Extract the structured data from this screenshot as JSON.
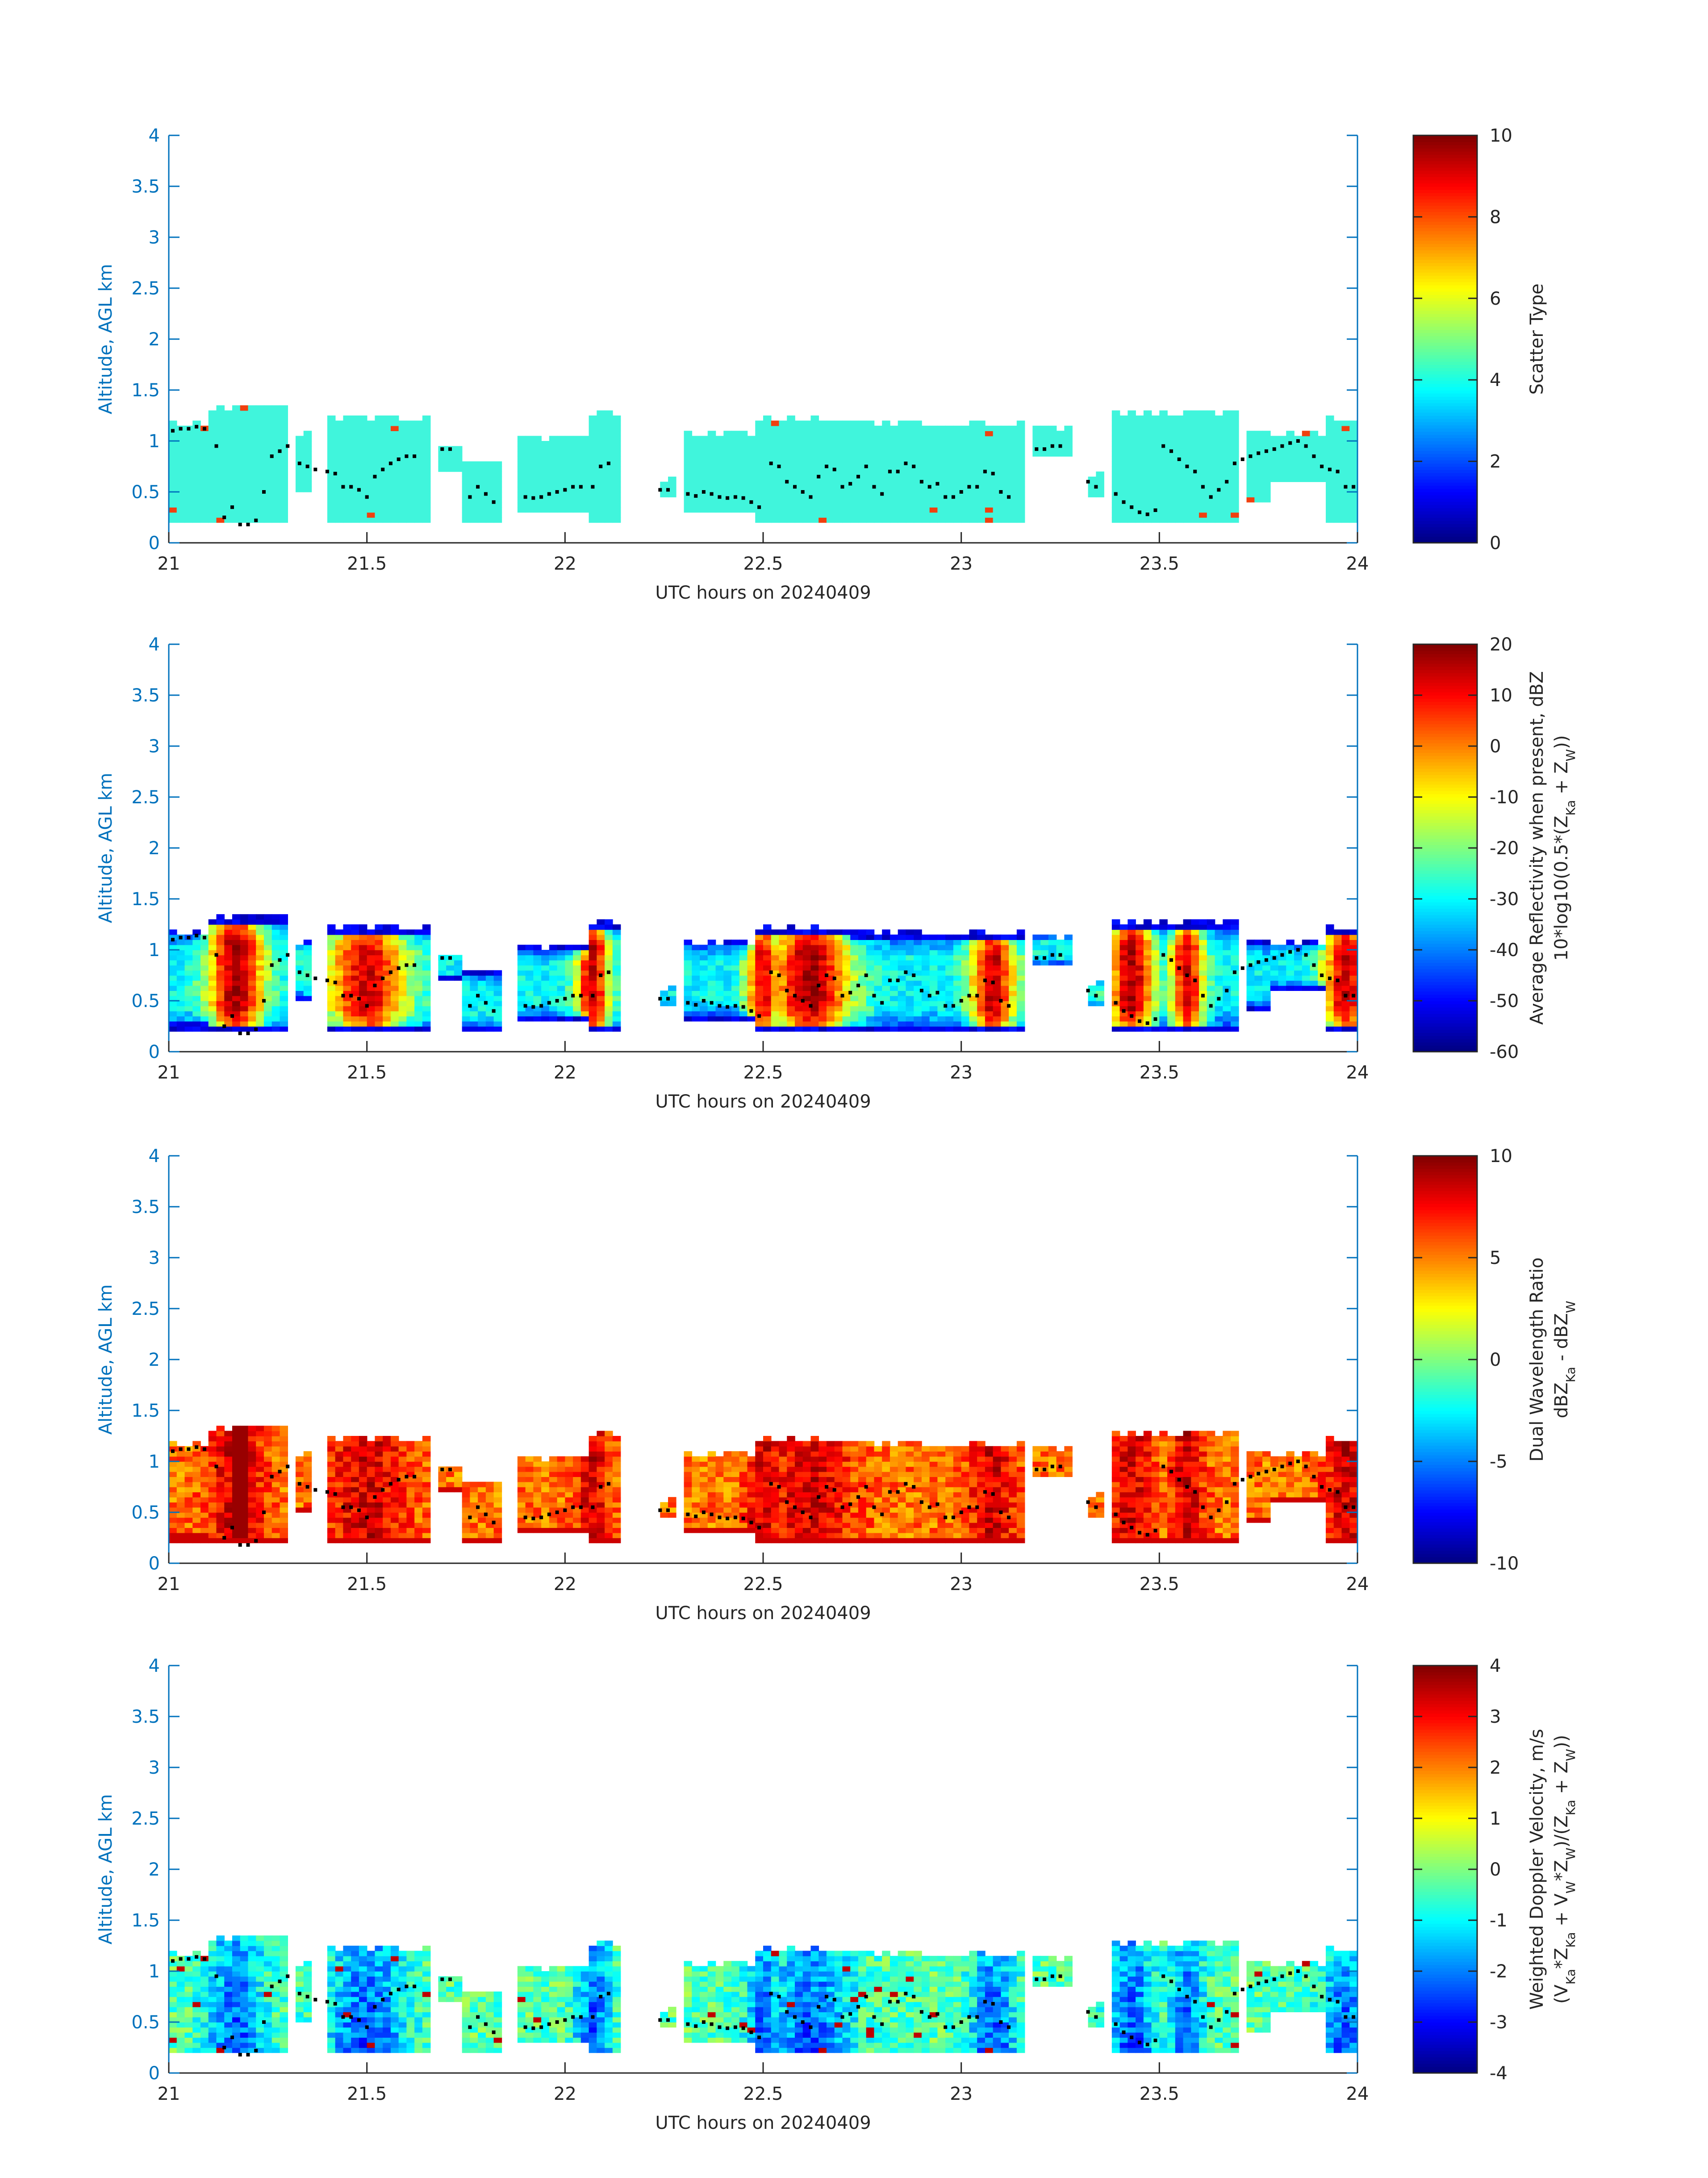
{
  "figure": {
    "colors": {
      "axis_blue": "#0072bd",
      "text_dark": "#262626",
      "scatter_cyan": "#40f5dc",
      "scatter_red": "#f0400f",
      "point_black": "#000000"
    },
    "colormap": "jet"
  },
  "chart_data": [
    {
      "type": "heatmap",
      "title": "",
      "xlabel": "UTC hours on 20240409",
      "ylabel": "Altitude, AGL km",
      "xlim": [
        21,
        24
      ],
      "ylim": [
        0,
        4
      ],
      "x_ticks": [
        "21",
        "21.5",
        "22",
        "22.5",
        "23",
        "23.5",
        "24"
      ],
      "y_ticks": [
        "0",
        "0.5",
        "1",
        "1.5",
        "2",
        "2.5",
        "3",
        "3.5",
        "4"
      ],
      "colorbar": {
        "label_lines": [
          "Scatter Type"
        ],
        "limits": [
          0,
          10
        ],
        "ticks": [
          "0",
          "2",
          "4",
          "6",
          "8",
          "10"
        ]
      },
      "field": "scatter"
    },
    {
      "type": "heatmap",
      "title": "",
      "xlabel": "UTC hours on 20240409",
      "ylabel": "Altitude, AGL km",
      "xlim": [
        21,
        24
      ],
      "ylim": [
        0,
        4
      ],
      "x_ticks": [
        "21",
        "21.5",
        "22",
        "22.5",
        "23",
        "23.5",
        "24"
      ],
      "y_ticks": [
        "0",
        "0.5",
        "1",
        "1.5",
        "2",
        "2.5",
        "3",
        "3.5",
        "4"
      ],
      "colorbar": {
        "label_lines": [
          "Average Reflectivity when present, dBZ",
          "10*log10(0.5*(Z_Ka + Z_W))"
        ],
        "limits": [
          -60,
          20
        ],
        "ticks": [
          "-60",
          "-50",
          "-40",
          "-30",
          "-20",
          "-10",
          "0",
          "10",
          "20"
        ]
      },
      "field": "reflectivity"
    },
    {
      "type": "heatmap",
      "title": "",
      "xlabel": "UTC hours on 20240409",
      "ylabel": "Altitude, AGL km",
      "xlim": [
        21,
        24
      ],
      "ylim": [
        0,
        4
      ],
      "x_ticks": [
        "21",
        "21.5",
        "22",
        "22.5",
        "23",
        "23.5",
        "24"
      ],
      "y_ticks": [
        "0",
        "0.5",
        "1",
        "1.5",
        "2",
        "2.5",
        "3",
        "3.5",
        "4"
      ],
      "colorbar": {
        "label_lines": [
          "Dual Wavelength Ratio",
          "dBZ_Ka - dBZ_W"
        ],
        "limits": [
          -10,
          10
        ],
        "ticks": [
          "-10",
          "-5",
          "0",
          "5",
          "10"
        ]
      },
      "field": "dwr"
    },
    {
      "type": "heatmap",
      "title": "",
      "xlabel": "UTC hours on 20240409",
      "ylabel": "Altitude, AGL km",
      "xlim": [
        21,
        24
      ],
      "ylim": [
        0,
        4
      ],
      "x_ticks": [
        "21",
        "21.5",
        "22",
        "22.5",
        "23",
        "23.5",
        "24"
      ],
      "y_ticks": [
        "0",
        "0.5",
        "1",
        "1.5",
        "2",
        "2.5",
        "3",
        "3.5",
        "4"
      ],
      "colorbar": {
        "label_lines": [
          "Weighted Doppler Velocity, m/s",
          "(V_Ka*Z_Ka + V_W*Z_W)/(Z_Ka + Z_W))"
        ],
        "limits": [
          -4,
          4
        ],
        "ticks": [
          "-4",
          "-3",
          "-2",
          "-1",
          "0",
          "1",
          "2",
          "3",
          "4"
        ]
      },
      "field": "velocity"
    }
  ],
  "cloud_segments": [
    {
      "t0": 21.0,
      "t1": 21.1,
      "base": 0.2,
      "top": 1.22
    },
    {
      "t0": 21.1,
      "t1": 21.3,
      "base": 0.18,
      "top": 1.35
    },
    {
      "t0": 21.31,
      "t1": 21.36,
      "base": 0.5,
      "top": 1.12
    },
    {
      "t0": 21.4,
      "t1": 21.65,
      "base": 0.18,
      "top": 1.25
    },
    {
      "t0": 21.68,
      "t1": 21.73,
      "base": 0.7,
      "top": 1.02
    },
    {
      "t0": 21.74,
      "t1": 21.83,
      "base": 0.2,
      "top": 0.8
    },
    {
      "t0": 21.88,
      "t1": 22.05,
      "base": 0.28,
      "top": 1.05
    },
    {
      "t0": 22.05,
      "t1": 22.13,
      "base": 0.18,
      "top": 1.3
    },
    {
      "t0": 22.23,
      "t1": 22.27,
      "base": 0.45,
      "top": 0.65
    },
    {
      "t0": 22.3,
      "t1": 22.48,
      "base": 0.3,
      "top": 1.1
    },
    {
      "t0": 22.48,
      "t1": 22.72,
      "base": 0.18,
      "top": 1.25
    },
    {
      "t0": 22.72,
      "t1": 23.15,
      "base": 0.18,
      "top": 1.2
    },
    {
      "t0": 23.18,
      "t1": 23.27,
      "base": 0.85,
      "top": 1.15
    },
    {
      "t0": 23.31,
      "t1": 23.36,
      "base": 0.45,
      "top": 0.7
    },
    {
      "t0": 23.38,
      "t1": 23.7,
      "base": 0.18,
      "top": 1.3
    },
    {
      "t0": 23.71,
      "t1": 23.78,
      "base": 0.4,
      "top": 1.1
    },
    {
      "t0": 23.78,
      "t1": 23.92,
      "base": 0.6,
      "top": 1.08
    },
    {
      "t0": 23.92,
      "t1": 24.0,
      "base": 0.18,
      "top": 1.25
    }
  ],
  "cloud_top_points": [
    {
      "t": 21.01,
      "alt": 1.1
    },
    {
      "t": 21.03,
      "alt": 1.12
    },
    {
      "t": 21.05,
      "alt": 1.12
    },
    {
      "t": 21.07,
      "alt": 1.14
    },
    {
      "t": 21.09,
      "alt": 1.12
    },
    {
      "t": 21.12,
      "alt": 0.95
    },
    {
      "t": 21.14,
      "alt": 0.25
    },
    {
      "t": 21.16,
      "alt": 0.35
    },
    {
      "t": 21.18,
      "alt": 0.18
    },
    {
      "t": 21.2,
      "alt": 0.18
    },
    {
      "t": 21.22,
      "alt": 0.22
    },
    {
      "t": 21.24,
      "alt": 0.5
    },
    {
      "t": 21.26,
      "alt": 0.85
    },
    {
      "t": 21.28,
      "alt": 0.9
    },
    {
      "t": 21.3,
      "alt": 0.95
    },
    {
      "t": 21.33,
      "alt": 0.78
    },
    {
      "t": 21.35,
      "alt": 0.75
    },
    {
      "t": 21.37,
      "alt": 0.72
    },
    {
      "t": 21.4,
      "alt": 0.7
    },
    {
      "t": 21.42,
      "alt": 0.68
    },
    {
      "t": 21.44,
      "alt": 0.55
    },
    {
      "t": 21.46,
      "alt": 0.55
    },
    {
      "t": 21.48,
      "alt": 0.52
    },
    {
      "t": 21.5,
      "alt": 0.45
    },
    {
      "t": 21.52,
      "alt": 0.65
    },
    {
      "t": 21.54,
      "alt": 0.72
    },
    {
      "t": 21.56,
      "alt": 0.78
    },
    {
      "t": 21.58,
      "alt": 0.82
    },
    {
      "t": 21.6,
      "alt": 0.85
    },
    {
      "t": 21.62,
      "alt": 0.85
    },
    {
      "t": 21.69,
      "alt": 0.92
    },
    {
      "t": 21.71,
      "alt": 0.92
    },
    {
      "t": 21.76,
      "alt": 0.45
    },
    {
      "t": 21.78,
      "alt": 0.55
    },
    {
      "t": 21.8,
      "alt": 0.48
    },
    {
      "t": 21.82,
      "alt": 0.4
    },
    {
      "t": 21.9,
      "alt": 0.45
    },
    {
      "t": 21.92,
      "alt": 0.44
    },
    {
      "t": 21.94,
      "alt": 0.45
    },
    {
      "t": 21.96,
      "alt": 0.48
    },
    {
      "t": 21.98,
      "alt": 0.5
    },
    {
      "t": 22.0,
      "alt": 0.52
    },
    {
      "t": 22.02,
      "alt": 0.55
    },
    {
      "t": 22.04,
      "alt": 0.55
    },
    {
      "t": 22.07,
      "alt": 0.55
    },
    {
      "t": 22.09,
      "alt": 0.75
    },
    {
      "t": 22.11,
      "alt": 0.78
    },
    {
      "t": 22.24,
      "alt": 0.52
    },
    {
      "t": 22.26,
      "alt": 0.52
    },
    {
      "t": 22.31,
      "alt": 0.48
    },
    {
      "t": 22.33,
      "alt": 0.46
    },
    {
      "t": 22.35,
      "alt": 0.5
    },
    {
      "t": 22.37,
      "alt": 0.48
    },
    {
      "t": 22.39,
      "alt": 0.45
    },
    {
      "t": 22.41,
      "alt": 0.44
    },
    {
      "t": 22.43,
      "alt": 0.45
    },
    {
      "t": 22.45,
      "alt": 0.44
    },
    {
      "t": 22.47,
      "alt": 0.4
    },
    {
      "t": 22.49,
      "alt": 0.35
    },
    {
      "t": 22.52,
      "alt": 0.78
    },
    {
      "t": 22.54,
      "alt": 0.75
    },
    {
      "t": 22.56,
      "alt": 0.6
    },
    {
      "t": 22.58,
      "alt": 0.55
    },
    {
      "t": 22.6,
      "alt": 0.5
    },
    {
      "t": 22.62,
      "alt": 0.45
    },
    {
      "t": 22.64,
      "alt": 0.65
    },
    {
      "t": 22.66,
      "alt": 0.75
    },
    {
      "t": 22.68,
      "alt": 0.72
    },
    {
      "t": 22.7,
      "alt": 0.55
    },
    {
      "t": 22.72,
      "alt": 0.58
    },
    {
      "t": 22.74,
      "alt": 0.65
    },
    {
      "t": 22.76,
      "alt": 0.75
    },
    {
      "t": 22.78,
      "alt": 0.55
    },
    {
      "t": 22.8,
      "alt": 0.48
    },
    {
      "t": 22.82,
      "alt": 0.7
    },
    {
      "t": 22.84,
      "alt": 0.7
    },
    {
      "t": 22.86,
      "alt": 0.78
    },
    {
      "t": 22.88,
      "alt": 0.75
    },
    {
      "t": 22.9,
      "alt": 0.6
    },
    {
      "t": 22.92,
      "alt": 0.55
    },
    {
      "t": 22.94,
      "alt": 0.58
    },
    {
      "t": 22.96,
      "alt": 0.45
    },
    {
      "t": 22.98,
      "alt": 0.45
    },
    {
      "t": 23.0,
      "alt": 0.5
    },
    {
      "t": 23.02,
      "alt": 0.55
    },
    {
      "t": 23.04,
      "alt": 0.55
    },
    {
      "t": 23.06,
      "alt": 0.7
    },
    {
      "t": 23.08,
      "alt": 0.68
    },
    {
      "t": 23.1,
      "alt": 0.5
    },
    {
      "t": 23.12,
      "alt": 0.45
    },
    {
      "t": 23.19,
      "alt": 0.92
    },
    {
      "t": 23.21,
      "alt": 0.92
    },
    {
      "t": 23.23,
      "alt": 0.95
    },
    {
      "t": 23.25,
      "alt": 0.95
    },
    {
      "t": 23.32,
      "alt": 0.6
    },
    {
      "t": 23.34,
      "alt": 0.55
    },
    {
      "t": 23.39,
      "alt": 0.48
    },
    {
      "t": 23.41,
      "alt": 0.4
    },
    {
      "t": 23.43,
      "alt": 0.35
    },
    {
      "t": 23.45,
      "alt": 0.3
    },
    {
      "t": 23.47,
      "alt": 0.28
    },
    {
      "t": 23.49,
      "alt": 0.32
    },
    {
      "t": 23.51,
      "alt": 0.95
    },
    {
      "t": 23.53,
      "alt": 0.9
    },
    {
      "t": 23.55,
      "alt": 0.82
    },
    {
      "t": 23.57,
      "alt": 0.75
    },
    {
      "t": 23.59,
      "alt": 0.7
    },
    {
      "t": 23.61,
      "alt": 0.55
    },
    {
      "t": 23.63,
      "alt": 0.45
    },
    {
      "t": 23.65,
      "alt": 0.52
    },
    {
      "t": 23.67,
      "alt": 0.6
    },
    {
      "t": 23.69,
      "alt": 0.78
    },
    {
      "t": 23.71,
      "alt": 0.82
    },
    {
      "t": 23.73,
      "alt": 0.85
    },
    {
      "t": 23.75,
      "alt": 0.88
    },
    {
      "t": 23.77,
      "alt": 0.9
    },
    {
      "t": 23.79,
      "alt": 0.92
    },
    {
      "t": 23.81,
      "alt": 0.95
    },
    {
      "t": 23.83,
      "alt": 0.98
    },
    {
      "t": 23.85,
      "alt": 1.0
    },
    {
      "t": 23.87,
      "alt": 0.95
    },
    {
      "t": 23.89,
      "alt": 0.85
    },
    {
      "t": 23.91,
      "alt": 0.75
    },
    {
      "t": 23.93,
      "alt": 0.72
    },
    {
      "t": 23.95,
      "alt": 0.7
    },
    {
      "t": 23.97,
      "alt": 0.55
    },
    {
      "t": 23.99,
      "alt": 0.55
    }
  ],
  "reflectivity_cores": [
    {
      "t": 21.17,
      "peak": 12,
      "width": 0.05
    },
    {
      "t": 21.5,
      "peak": 6,
      "width": 0.07
    },
    {
      "t": 22.07,
      "peak": 8,
      "width": 0.03
    },
    {
      "t": 22.5,
      "peak": 4,
      "width": 0.03
    },
    {
      "t": 22.62,
      "peak": 12,
      "width": 0.07
    },
    {
      "t": 23.08,
      "peak": 8,
      "width": 0.04
    },
    {
      "t": 23.43,
      "peak": 12,
      "width": 0.04
    },
    {
      "t": 23.57,
      "peak": 5,
      "width": 0.03
    },
    {
      "t": 23.97,
      "peak": 7,
      "width": 0.04
    }
  ]
}
